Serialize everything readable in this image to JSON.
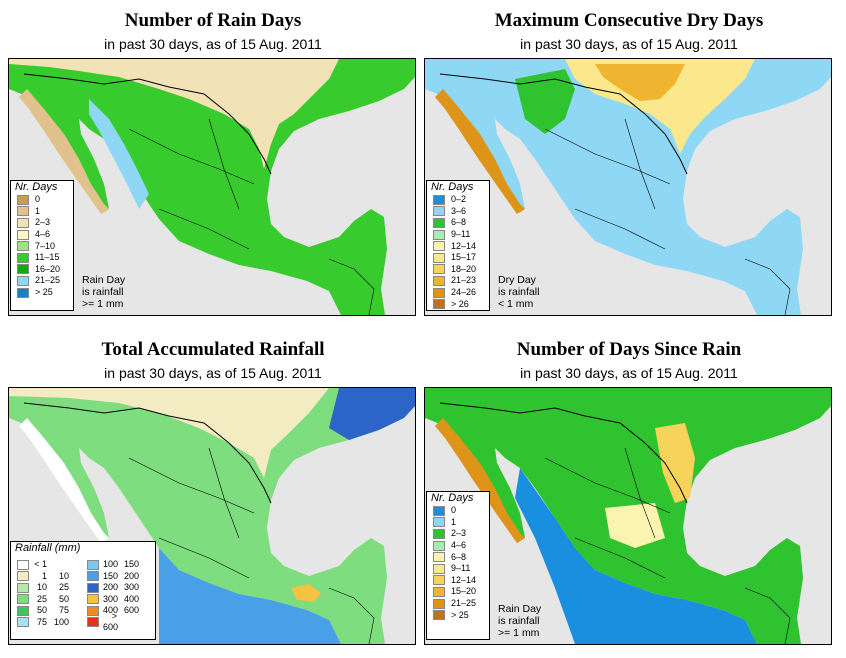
{
  "panels": {
    "rain_days": {
      "title": "Number of Rain Days",
      "subtitle": "in past 30 days, as of  15 Aug. 2011",
      "legend_title": "Nr. Days",
      "legend": [
        {
          "label": "0",
          "color": "#c9a04a"
        },
        {
          "label": "1",
          "color": "#e1c28c"
        },
        {
          "label": "2–3",
          "color": "#f1e3b6"
        },
        {
          "label": "4–6",
          "color": "#fbf6c4"
        },
        {
          "label": "7–10",
          "color": "#9de67e"
        },
        {
          "label": "11–15",
          "color": "#38cb2e"
        },
        {
          "label": "16–20",
          "color": "#11a810"
        },
        {
          "label": "21–25",
          "color": "#8fd8f5"
        },
        {
          "label": "> 25",
          "color": "#1a7fc4"
        }
      ],
      "note": [
        "Rain Day",
        "is rainfall",
        ">= 1 mm"
      ]
    },
    "dry_days": {
      "title": "Maximum Consecutive Dry Days",
      "subtitle": "in past 30 days, as of  15 Aug. 2011",
      "legend_title": "Nr. Days",
      "legend": [
        {
          "label": "0–2",
          "color": "#1a8fe0"
        },
        {
          "label": "3–6",
          "color": "#8fd8f5"
        },
        {
          "label": "6–8",
          "color": "#2fc42f"
        },
        {
          "label": "9–11",
          "color": "#a9ecb0"
        },
        {
          "label": "12–14",
          "color": "#fbf4b0"
        },
        {
          "label": "15–17",
          "color": "#fbe88c"
        },
        {
          "label": "18–20",
          "color": "#f7d35b"
        },
        {
          "label": "21–23",
          "color": "#efb531"
        },
        {
          "label": "24–26",
          "color": "#dd9418"
        },
        {
          "label": "> 26",
          "color": "#c0731a"
        }
      ],
      "note": [
        "Dry Day",
        "is rainfall",
        "< 1 mm"
      ]
    },
    "accum_rain": {
      "title": "Total Accumulated Rainfall",
      "subtitle": "in past 30 days, as of  15 Aug. 2011",
      "legend_title": "Rainfall (mm)",
      "legend_left": [
        {
          "lo": "< 1",
          "hi": "",
          "color": "#ffffff"
        },
        {
          "lo": "1",
          "hi": "10",
          "color": "#f3ecc3"
        },
        {
          "lo": "10",
          "hi": "25",
          "color": "#b5e9a8"
        },
        {
          "lo": "25",
          "hi": "50",
          "color": "#7edd7e"
        },
        {
          "lo": "50",
          "hi": "75",
          "color": "#3fc65a"
        },
        {
          "lo": "75",
          "hi": "100",
          "color": "#a8e1f4"
        }
      ],
      "legend_right": [
        {
          "lo": "100",
          "hi": "150",
          "color": "#7cc6f0"
        },
        {
          "lo": "150",
          "hi": "200",
          "color": "#4aa0e6"
        },
        {
          "lo": "200",
          "hi": "300",
          "color": "#2c64c8"
        },
        {
          "lo": "300",
          "hi": "400",
          "color": "#f5c242"
        },
        {
          "lo": "400",
          "hi": "600",
          "color": "#f08a1f"
        },
        {
          "lo": "> 600",
          "hi": "",
          "color": "#e8301a"
        }
      ]
    },
    "days_since": {
      "title": "Number of Days Since Rain",
      "subtitle": "in past 30 days, as of  15 Aug. 2011",
      "legend_title": "Nr. Days",
      "legend": [
        {
          "label": "0",
          "color": "#1a8fe0"
        },
        {
          "label": "1",
          "color": "#8fd8f5"
        },
        {
          "label": "2–3",
          "color": "#2fc42f"
        },
        {
          "label": "4–6",
          "color": "#a9ecb0"
        },
        {
          "label": "6–8",
          "color": "#fbf4b0"
        },
        {
          "label": "9–11",
          "color": "#fbe88c"
        },
        {
          "label": "12–14",
          "color": "#f7d35b"
        },
        {
          "label": "15–20",
          "color": "#efb531"
        },
        {
          "label": "21–25",
          "color": "#dd9418"
        },
        {
          "label": "> 25",
          "color": "#c0731a"
        }
      ],
      "note": [
        "Rain Day",
        "is rainfall",
        ">= 1 mm"
      ]
    }
  },
  "colors": {
    "land_base_rain_days": "#38cb2e",
    "land_north_rain_days": "#f1e3b6",
    "land_base_dry": "#8fd8f5",
    "land_north_dry": "#f7d35b",
    "land_base_accum": "#7edd7e",
    "land_north_accum": "#f3ecc3",
    "land_south_accum": "#4aa0e6",
    "land_base_since": "#2fc42f",
    "land_south_since": "#1a8fe0",
    "ocean": "#e6e6e6"
  }
}
